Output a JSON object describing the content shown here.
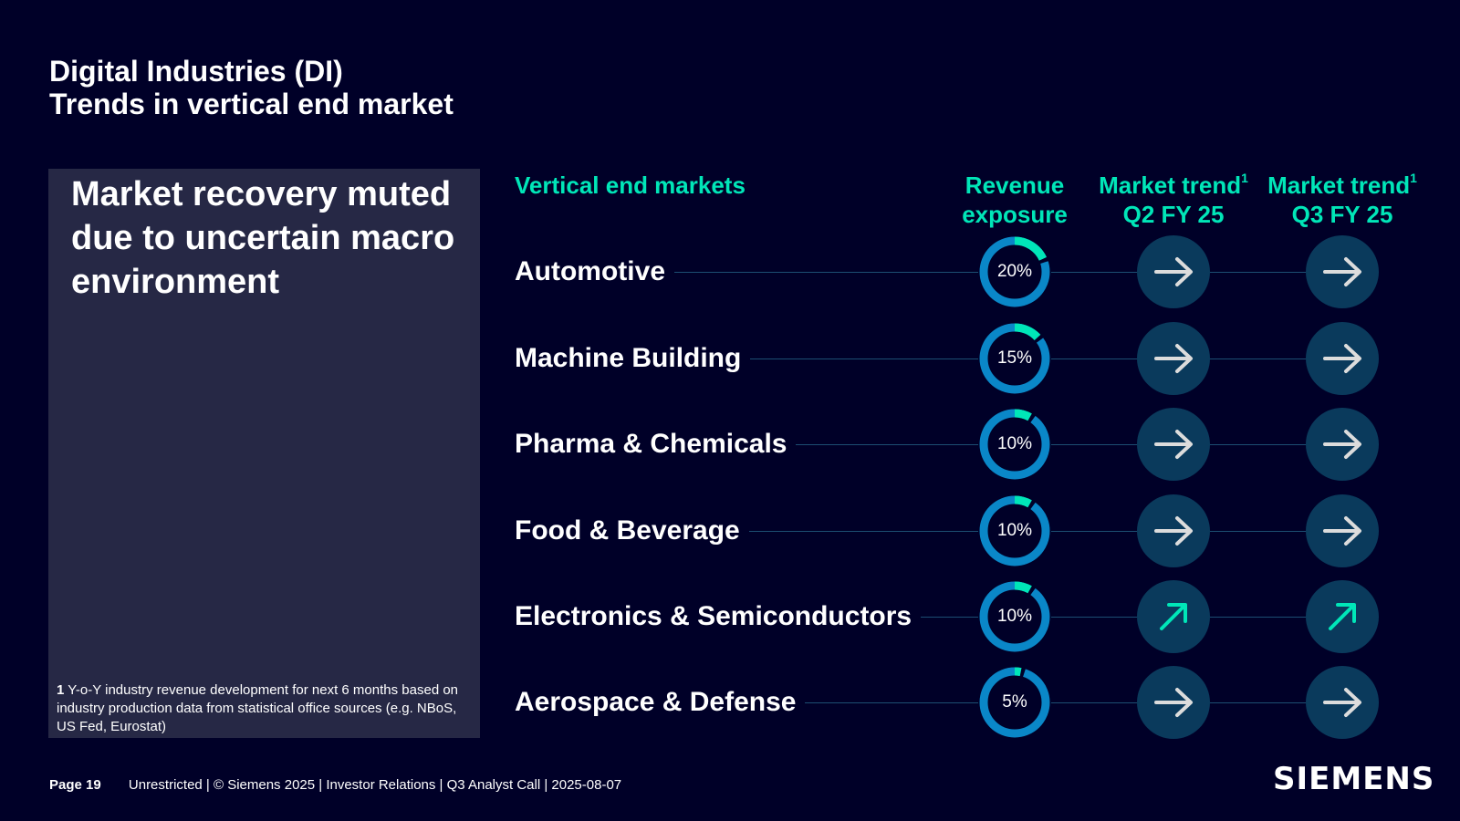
{
  "title": {
    "line1": "Digital Industries (DI)",
    "line2": "Trends in vertical end market"
  },
  "panel": {
    "headline": "Market recovery muted due to uncertain macro environment",
    "footnote_marker": "1",
    "footnote_text": "Y-o-Y industry revenue development for next 6 months based on industry production data from statistical office sources (e.g. NBoS, US Fed, Eurostat)"
  },
  "columns": {
    "markets": "Vertical end markets",
    "revenue_line1": "Revenue",
    "revenue_line2": "exposure",
    "trend_q2_line1": "Market trend",
    "trend_q2_line2": "Q2 FY 25",
    "trend_q3_line1": "Market trend",
    "trend_q3_line2": "Q3 FY 25",
    "footnote_ref": "1"
  },
  "markets": [
    {
      "name": "Automotive",
      "exposure_label": "20%",
      "exposure": 0.2,
      "trend_q2": "flat",
      "trend_q3": "flat"
    },
    {
      "name": "Machine Building",
      "exposure_label": "15%",
      "exposure": 0.15,
      "trend_q2": "flat",
      "trend_q3": "flat"
    },
    {
      "name": "Pharma & Chemicals",
      "exposure_label": "10%",
      "exposure": 0.1,
      "trend_q2": "flat",
      "trend_q3": "flat"
    },
    {
      "name": "Food & Beverage",
      "exposure_label": "10%",
      "exposure": 0.1,
      "trend_q2": "flat",
      "trend_q3": "flat"
    },
    {
      "name": "Electronics & Semiconductors",
      "exposure_label": "10%",
      "exposure": 0.1,
      "trend_q2": "up",
      "trend_q3": "up"
    },
    {
      "name": "Aerospace & Defense",
      "exposure_label": "5%",
      "exposure": 0.05,
      "trend_q2": "flat",
      "trend_q3": "flat"
    }
  ],
  "footer": {
    "page": "Page 19",
    "text": "Unrestricted | © Siemens 2025 | Investor Relations | Q3 Analyst Call | 2025-08-07",
    "logo": "SIEMENS"
  },
  "colors": {
    "background": "#000028",
    "panel": "#262845",
    "accent": "#00e6b8",
    "donut_base": "#0a87c8",
    "trend_circle": "#0a3a5c",
    "arrow_flat": "#dcdcdc",
    "arrow_up": "#00e6b8"
  }
}
